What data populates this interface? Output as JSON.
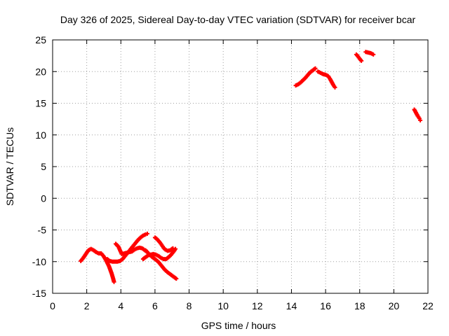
{
  "chart_data": {
    "type": "scatter",
    "title": "Day 326 of 2025, Sidereal Day-to-day VTEC variation (SDTVAR) for receiver bcar",
    "xlabel": "GPS time / hours",
    "ylabel": "SDTVAR / TECUs",
    "xlim": [
      0,
      22
    ],
    "ylim": [
      -15,
      25
    ],
    "x_ticks": [
      0,
      2,
      4,
      6,
      8,
      10,
      12,
      14,
      16,
      18,
      20,
      22
    ],
    "y_ticks": [
      -15,
      -10,
      -5,
      0,
      5,
      10,
      15,
      20,
      25
    ],
    "grid": true,
    "marker_color": "#ff0000",
    "series": [
      {
        "points": [
          [
            1.65,
            -9.9
          ],
          [
            1.8,
            -9.4
          ],
          [
            1.95,
            -8.8
          ],
          [
            2.1,
            -8.2
          ],
          [
            2.25,
            -8.0
          ],
          [
            2.4,
            -8.2
          ],
          [
            2.55,
            -8.5
          ],
          [
            2.7,
            -8.7
          ],
          [
            2.85,
            -8.7
          ],
          [
            3.0,
            -9.2
          ],
          [
            3.15,
            -9.9
          ],
          [
            3.3,
            -10.7
          ],
          [
            3.45,
            -11.8
          ],
          [
            3.55,
            -12.7
          ],
          [
            3.6,
            -13.2
          ]
        ]
      },
      {
        "points": [
          [
            3.2,
            -9.6
          ],
          [
            3.35,
            -9.9
          ],
          [
            3.5,
            -10.0
          ],
          [
            3.65,
            -10.0
          ],
          [
            3.8,
            -10.0
          ],
          [
            3.95,
            -9.9
          ],
          [
            4.1,
            -9.6
          ],
          [
            4.25,
            -9.1
          ],
          [
            4.4,
            -8.6
          ],
          [
            4.55,
            -8.1
          ],
          [
            4.7,
            -7.6
          ],
          [
            4.85,
            -7.1
          ],
          [
            5.0,
            -6.6
          ],
          [
            5.15,
            -6.2
          ],
          [
            5.3,
            -5.9
          ],
          [
            5.45,
            -5.7
          ],
          [
            5.55,
            -5.6
          ]
        ]
      },
      {
        "points": [
          [
            3.7,
            -7.2
          ],
          [
            3.85,
            -7.6
          ],
          [
            3.95,
            -8.2
          ],
          [
            4.05,
            -8.8
          ],
          [
            4.2,
            -8.7
          ],
          [
            4.35,
            -8.6
          ],
          [
            4.5,
            -8.5
          ],
          [
            4.65,
            -8.4
          ],
          [
            4.8,
            -8.1
          ],
          [
            4.95,
            -7.9
          ],
          [
            5.1,
            -7.8
          ],
          [
            5.25,
            -7.9
          ],
          [
            5.4,
            -8.2
          ],
          [
            5.5,
            -8.4
          ]
        ]
      },
      {
        "points": [
          [
            5.3,
            -9.6
          ],
          [
            5.45,
            -9.3
          ],
          [
            5.6,
            -9.0
          ],
          [
            5.75,
            -8.9
          ],
          [
            5.9,
            -8.8
          ],
          [
            6.05,
            -8.9
          ],
          [
            6.2,
            -9.1
          ],
          [
            6.35,
            -9.4
          ],
          [
            6.5,
            -9.6
          ],
          [
            6.65,
            -9.6
          ],
          [
            6.8,
            -9.3
          ],
          [
            6.95,
            -8.9
          ],
          [
            7.1,
            -8.4
          ],
          [
            7.2,
            -8.0
          ]
        ]
      },
      {
        "points": [
          [
            5.45,
            -8.2
          ],
          [
            5.55,
            -8.5
          ],
          [
            5.65,
            -8.8
          ],
          [
            5.8,
            -9.2
          ],
          [
            5.95,
            -9.5
          ],
          [
            6.1,
            -9.8
          ],
          [
            6.25,
            -10.2
          ],
          [
            6.4,
            -10.7
          ],
          [
            6.55,
            -11.2
          ],
          [
            6.7,
            -11.6
          ],
          [
            6.85,
            -11.9
          ],
          [
            7.0,
            -12.2
          ],
          [
            7.15,
            -12.5
          ],
          [
            7.25,
            -12.7
          ]
        ]
      },
      {
        "points": [
          [
            6.0,
            -6.2
          ],
          [
            6.1,
            -6.4
          ],
          [
            6.2,
            -6.7
          ],
          [
            6.3,
            -7.0
          ],
          [
            6.4,
            -7.4
          ],
          [
            6.5,
            -7.8
          ],
          [
            6.6,
            -8.1
          ],
          [
            6.75,
            -8.3
          ],
          [
            6.9,
            -8.2
          ],
          [
            7.05,
            -7.9
          ]
        ]
      },
      {
        "points": [
          [
            14.25,
            17.8
          ],
          [
            14.4,
            18.0
          ],
          [
            14.55,
            18.3
          ],
          [
            14.7,
            18.7
          ],
          [
            14.85,
            19.1
          ],
          [
            15.0,
            19.6
          ],
          [
            15.15,
            20.0
          ],
          [
            15.3,
            20.3
          ],
          [
            15.4,
            20.5
          ]
        ]
      },
      {
        "points": [
          [
            15.55,
            20.0
          ],
          [
            15.7,
            19.8
          ],
          [
            15.85,
            19.6
          ],
          [
            16.0,
            19.5
          ],
          [
            16.15,
            19.3
          ],
          [
            16.25,
            18.9
          ],
          [
            16.35,
            18.4
          ],
          [
            16.45,
            17.9
          ],
          [
            16.55,
            17.5
          ]
        ]
      },
      {
        "points": [
          [
            17.8,
            22.7
          ],
          [
            17.9,
            22.4
          ],
          [
            18.0,
            22.0
          ],
          [
            18.1,
            21.7
          ]
        ]
      },
      {
        "points": [
          [
            18.35,
            23.1
          ],
          [
            18.5,
            23.0
          ],
          [
            18.65,
            22.9
          ],
          [
            18.8,
            22.7
          ]
        ]
      },
      {
        "points": [
          [
            21.2,
            14.0
          ],
          [
            21.3,
            13.5
          ],
          [
            21.4,
            13.0
          ],
          [
            21.5,
            12.6
          ],
          [
            21.55,
            12.3
          ]
        ]
      }
    ]
  }
}
